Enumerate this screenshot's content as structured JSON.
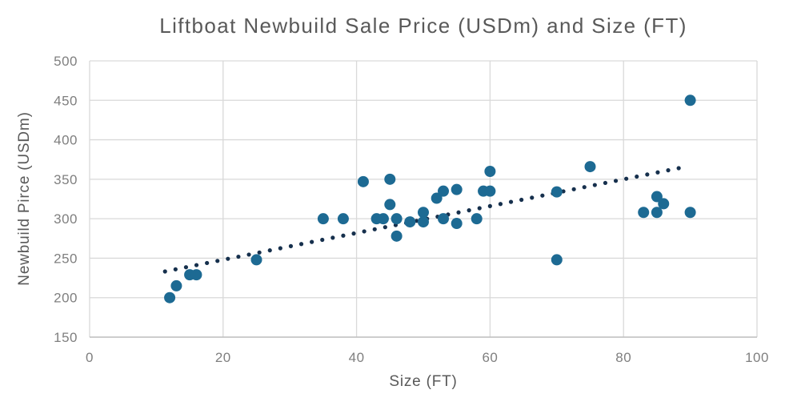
{
  "chart_data": {
    "type": "scatter",
    "title": "Liftboat Newbuild Sale Price (USDm) and Size (FT)",
    "xlabel": "Size (FT)",
    "ylabel": "Newbuild Pirce (USDm)",
    "xlim": [
      0,
      100
    ],
    "ylim": [
      150,
      500
    ],
    "x_ticks": [
      0,
      20,
      40,
      60,
      80,
      100
    ],
    "y_ticks": [
      150,
      200,
      250,
      300,
      350,
      400,
      450,
      500
    ],
    "grid": true,
    "legend": "none",
    "points": [
      [
        12,
        200
      ],
      [
        13,
        215
      ],
      [
        15,
        229
      ],
      [
        16,
        229
      ],
      [
        25,
        248
      ],
      [
        35,
        300
      ],
      [
        38,
        300
      ],
      [
        41,
        347
      ],
      [
        43,
        300
      ],
      [
        44,
        300
      ],
      [
        45,
        318
      ],
      [
        45,
        350
      ],
      [
        46,
        278
      ],
      [
        46,
        300
      ],
      [
        48,
        296
      ],
      [
        50,
        296
      ],
      [
        50,
        308
      ],
      [
        52,
        326
      ],
      [
        53,
        300
      ],
      [
        53,
        335
      ],
      [
        55,
        294
      ],
      [
        55,
        337
      ],
      [
        58,
        300
      ],
      [
        59,
        335
      ],
      [
        60,
        335
      ],
      [
        60,
        360
      ],
      [
        70,
        248
      ],
      [
        70,
        334
      ],
      [
        75,
        366
      ],
      [
        83,
        308
      ],
      [
        85,
        308
      ],
      [
        85,
        328
      ],
      [
        86,
        319
      ],
      [
        90,
        308
      ],
      [
        90,
        450
      ]
    ],
    "trendline": {
      "style": "dotted",
      "slope": 1.7,
      "intercept": 214,
      "x_start": 11.3,
      "x_end": 89
    },
    "colors": {
      "point": "#1d6a93",
      "trend": "#16304d",
      "grid": "#d9d9d9",
      "axis_line": "#bfbfbf",
      "title_text": "#595959",
      "tick_text": "#7f7f7f",
      "background": "#ffffff"
    }
  }
}
